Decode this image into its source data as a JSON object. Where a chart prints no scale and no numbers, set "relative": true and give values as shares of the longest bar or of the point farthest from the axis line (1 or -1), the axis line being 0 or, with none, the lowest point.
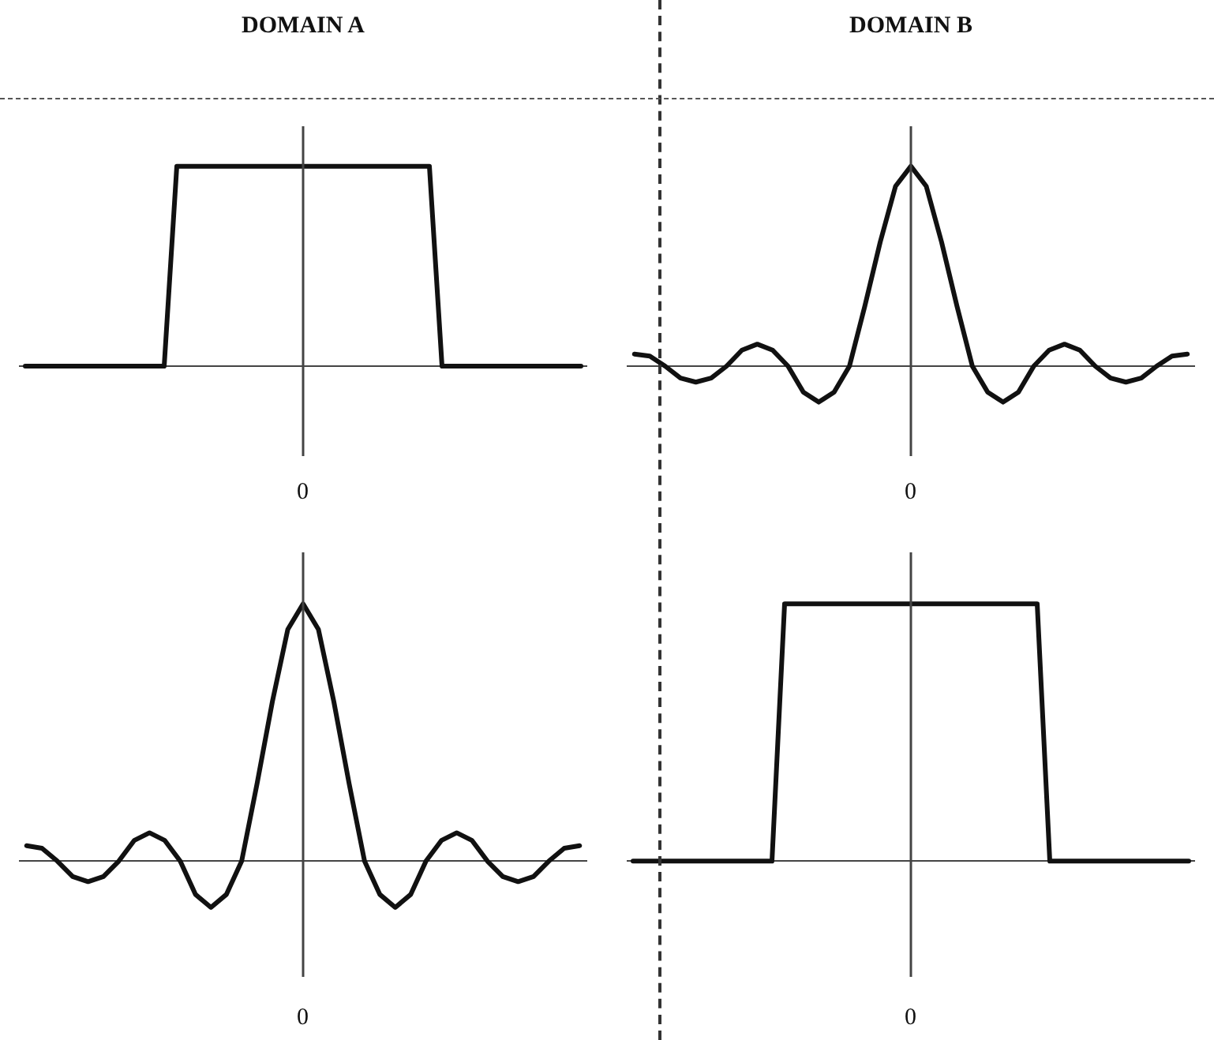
{
  "chart_data": [
    {
      "type": "line",
      "title": "DOMAIN A",
      "relative": true,
      "color": "#111111",
      "marker": "none",
      "grid": false,
      "annotations": [
        "0"
      ],
      "categories": [
        null,
        null,
        null,
        null,
        null,
        null,
        null,
        null,
        null,
        null,
        null,
        null,
        null,
        null,
        null,
        null,
        null,
        null,
        null,
        null,
        null,
        null,
        null,
        null,
        null,
        null,
        null,
        null,
        null,
        null,
        null,
        null,
        null,
        null,
        null,
        null,
        null,
        null,
        null,
        null,
        null,
        null,
        null,
        null,
        null
      ],
      "values": [
        0,
        0,
        0,
        0,
        0,
        0,
        0,
        0,
        0,
        0,
        0,
        0,
        1,
        1,
        1,
        1,
        1,
        1,
        1,
        1,
        1,
        1,
        1,
        1,
        1,
        1,
        1,
        1,
        1,
        1,
        1,
        1,
        1,
        0,
        0,
        0,
        0,
        0,
        0,
        0,
        0,
        0,
        0,
        0,
        0
      ]
    },
    {
      "type": "line",
      "title": "DOMAIN B",
      "relative": true,
      "color": "#111111",
      "marker": "none",
      "grid": false,
      "annotations": [
        "0"
      ],
      "categories": [
        null,
        null,
        null,
        null,
        null,
        null,
        null,
        null,
        null,
        null,
        null,
        null,
        null,
        null,
        null,
        null,
        null,
        null,
        null,
        null,
        null,
        null,
        null,
        null,
        null,
        null,
        null,
        null,
        null,
        null,
        null,
        null,
        null,
        null,
        null,
        null,
        null
      ],
      "values": [
        0.06,
        0.05,
        0,
        -0.06,
        -0.08,
        -0.06,
        0,
        0.08,
        0.11,
        0.08,
        0,
        -0.13,
        -0.18,
        -0.13,
        0,
        0.3,
        0.62,
        0.9,
        1,
        0.9,
        0.62,
        0.3,
        0,
        -0.13,
        -0.18,
        -0.13,
        0,
        0.08,
        0.11,
        0.08,
        0,
        -0.06,
        -0.08,
        -0.06,
        0,
        0.05,
        0.06
      ]
    },
    {
      "type": "line",
      "relative": true,
      "color": "#111111",
      "marker": "none",
      "grid": false,
      "annotations": [
        "0"
      ],
      "categories": [
        null,
        null,
        null,
        null,
        null,
        null,
        null,
        null,
        null,
        null,
        null,
        null,
        null,
        null,
        null,
        null,
        null,
        null,
        null,
        null,
        null,
        null,
        null,
        null,
        null,
        null,
        null,
        null,
        null,
        null,
        null,
        null,
        null,
        null,
        null,
        null,
        null
      ],
      "values": [
        0.06,
        0.05,
        0,
        -0.06,
        -0.08,
        -0.06,
        0,
        0.08,
        0.11,
        0.08,
        0,
        -0.13,
        -0.18,
        -0.13,
        0,
        0.3,
        0.62,
        0.9,
        1,
        0.9,
        0.62,
        0.3,
        0,
        -0.13,
        -0.18,
        -0.13,
        0,
        0.08,
        0.11,
        0.08,
        0,
        -0.06,
        -0.08,
        -0.06,
        0,
        0.05,
        0.06
      ]
    },
    {
      "type": "line",
      "relative": true,
      "color": "#111111",
      "marker": "none",
      "grid": false,
      "annotations": [
        "0"
      ],
      "categories": [
        null,
        null,
        null,
        null,
        null,
        null,
        null,
        null,
        null,
        null,
        null,
        null,
        null,
        null,
        null,
        null,
        null,
        null,
        null,
        null,
        null,
        null,
        null,
        null,
        null,
        null,
        null,
        null,
        null,
        null,
        null,
        null,
        null,
        null,
        null,
        null,
        null,
        null,
        null,
        null,
        null,
        null,
        null,
        null,
        null
      ],
      "values": [
        0,
        0,
        0,
        0,
        0,
        0,
        0,
        0,
        0,
        0,
        0,
        0,
        1,
        1,
        1,
        1,
        1,
        1,
        1,
        1,
        1,
        1,
        1,
        1,
        1,
        1,
        1,
        1,
        1,
        1,
        1,
        1,
        1,
        0,
        0,
        0,
        0,
        0,
        0,
        0,
        0,
        0,
        0,
        0,
        0
      ]
    }
  ]
}
